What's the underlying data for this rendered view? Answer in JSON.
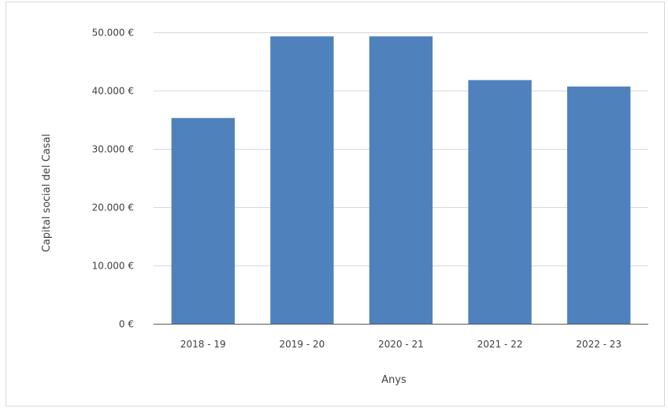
{
  "chart_data": {
    "type": "bar",
    "categories": [
      "2018 - 19",
      "2019 - 20",
      "2020 - 21",
      "2021 - 22",
      "2022 - 23"
    ],
    "values": [
      35300,
      49300,
      49300,
      41800,
      40700
    ],
    "title": "",
    "xlabel": "Anys",
    "ylabel": "Capital social del Casal",
    "ylim": [
      0,
      50000
    ],
    "yticks": [
      0,
      10000,
      20000,
      30000,
      40000,
      50000
    ],
    "ytick_labels": [
      "0 €",
      "10.000 €",
      "20.000 €",
      "30.000 €",
      "40.000 €",
      "50.000 €"
    ],
    "grid": true,
    "legend": "none",
    "bar_color": "#4f81bd",
    "grid_color": "#d9d9d9",
    "axis_color": "#595959"
  }
}
